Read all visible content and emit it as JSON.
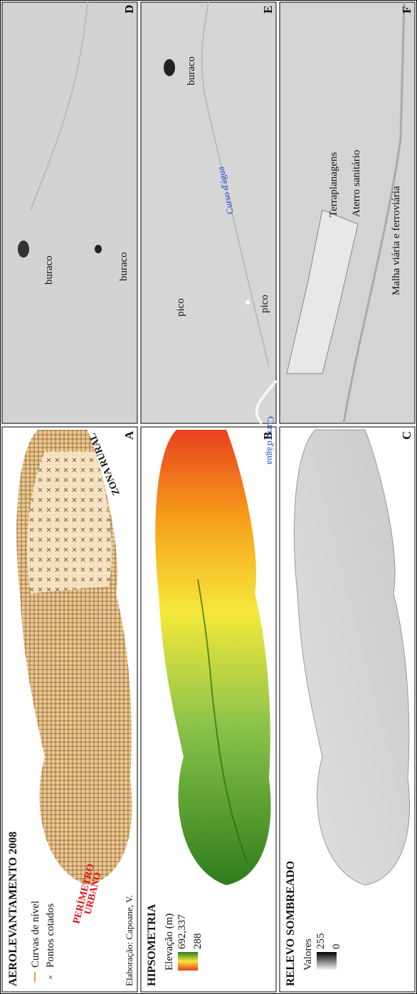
{
  "panels": [
    {
      "letter": "A",
      "title": "AEROLEVANTAMENTO 2008",
      "legend": [
        "Curvas  de nível",
        "Pontos cotados"
      ],
      "urban_label": [
        "PERÍMETRO",
        "URBANO"
      ],
      "rural_label": "ZONA RURAL",
      "credit": "Elaboração: Capoane, V."
    },
    {
      "letter": "B",
      "title": "HIPSOMETRIA",
      "legend_title": "Elevação (m)",
      "legend_max": "692,337",
      "legend_min": "288"
    },
    {
      "letter": "C",
      "title": "RELEVO SOMBREADO",
      "legend_title": "Valores",
      "legend_max": "255",
      "legend_min": "0"
    },
    {
      "letter": "D",
      "labels": [
        "buraco",
        "buraco"
      ]
    },
    {
      "letter": "E",
      "labels": [
        "Curso d'água",
        "pico",
        "Curso d'água",
        "pico",
        "buraco"
      ]
    },
    {
      "letter": "F",
      "labels": [
        "Terraplanagens",
        "Aterro sanitário",
        "Malha viária e ferroviária"
      ]
    }
  ]
}
